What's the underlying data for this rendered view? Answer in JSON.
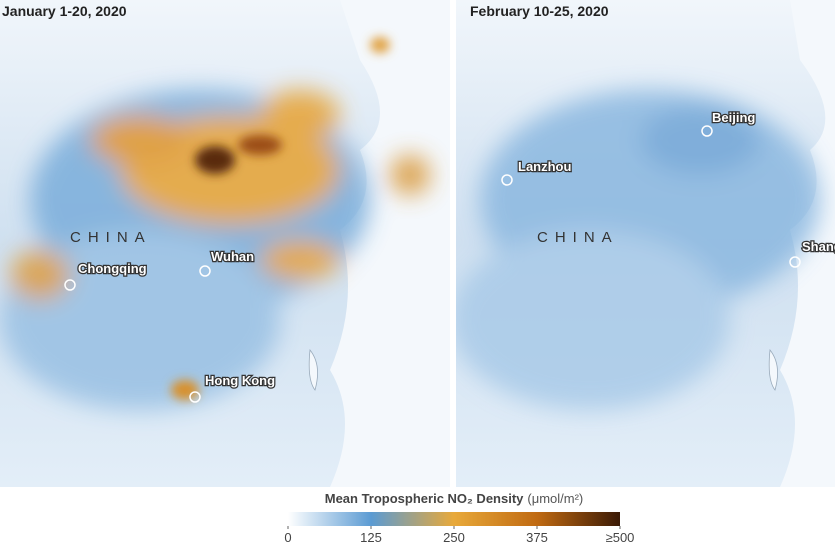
{
  "panels": [
    {
      "title": "January 1-20, 2020",
      "country": "CHINA",
      "cities": [
        "Chongqing",
        "Wuhan",
        "Hong Kong"
      ]
    },
    {
      "title": "February 10-25, 2020",
      "country": "CHINA",
      "cities": [
        "Lanzhou",
        "Beijing",
        "Shanghai"
      ]
    }
  ],
  "legend": {
    "title": "Mean Tropospheric NO₂ Density",
    "unit": "(μmol/m²)",
    "range": [
      0,
      500
    ],
    "ticks": [
      0,
      125,
      250,
      375,
      {
        "value": 500,
        "label": "≥500"
      }
    ]
  }
}
